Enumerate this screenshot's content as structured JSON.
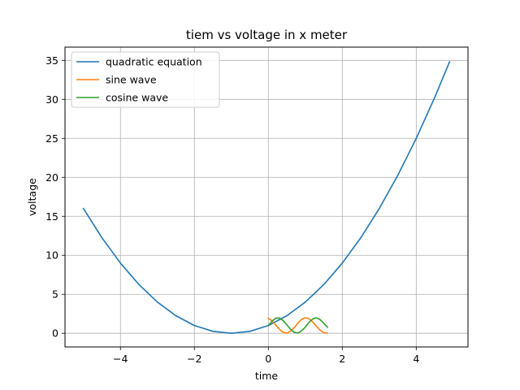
{
  "chart_data": {
    "type": "line",
    "title": "tiem vs voltage in x meter",
    "xlabel": "time",
    "ylabel": "voltage",
    "xlim": [
      -5.5,
      5.4
    ],
    "ylim": [
      -1.75,
      36.7
    ],
    "xticks": [
      -4,
      -2,
      0,
      2,
      4
    ],
    "xtick_labels": [
      "−4",
      "−2",
      "0",
      "2",
      "4"
    ],
    "yticks": [
      0,
      5,
      10,
      15,
      20,
      25,
      30,
      35
    ],
    "ytick_labels": [
      "0",
      "5",
      "10",
      "15",
      "20",
      "25",
      "30",
      "35"
    ],
    "grid": true,
    "legend_position": "upper-left",
    "series": [
      {
        "name": "quadratic equation",
        "color": "#1f77b4",
        "x": [
          -5.0,
          -4.5,
          -4.0,
          -3.5,
          -3.0,
          -2.5,
          -2.0,
          -1.5,
          -1.0,
          -0.5,
          0.0,
          0.5,
          1.0,
          1.5,
          2.0,
          2.5,
          3.0,
          3.5,
          4.0,
          4.5,
          4.9
        ],
        "y": [
          16.0,
          12.25,
          9.0,
          6.25,
          4.0,
          2.25,
          1.0,
          0.25,
          0.0,
          0.25,
          1.0,
          2.25,
          4.0,
          6.25,
          9.0,
          12.25,
          16.0,
          20.25,
          25.0,
          30.25,
          34.81
        ]
      },
      {
        "name": "sine wave",
        "color": "#ff7f0e",
        "x": [
          0.0,
          0.1,
          0.2,
          0.3,
          0.4,
          0.5,
          0.6,
          0.7,
          0.8,
          0.9,
          1.0,
          1.1,
          1.2,
          1.3,
          1.4,
          1.5,
          1.6
        ],
        "y": [
          1.93,
          1.59,
          1.06,
          0.51,
          0.13,
          0.03,
          0.26,
          0.74,
          1.3,
          1.78,
          2.0,
          1.87,
          1.46,
          0.91,
          0.4,
          0.07,
          0.06
        ]
      },
      {
        "name": "cosine wave",
        "color": "#2ca02c",
        "x": [
          0.0,
          0.1,
          0.2,
          0.3,
          0.4,
          0.5,
          0.6,
          0.7,
          0.8,
          0.9,
          1.0,
          1.1,
          1.2,
          1.3,
          1.4,
          1.5,
          1.6
        ],
        "y": [
          1.0,
          1.56,
          1.94,
          1.97,
          1.63,
          1.09,
          0.52,
          0.13,
          0.04,
          0.31,
          0.8,
          1.4,
          1.84,
          1.99,
          1.76,
          1.26,
          0.78
        ]
      }
    ]
  }
}
